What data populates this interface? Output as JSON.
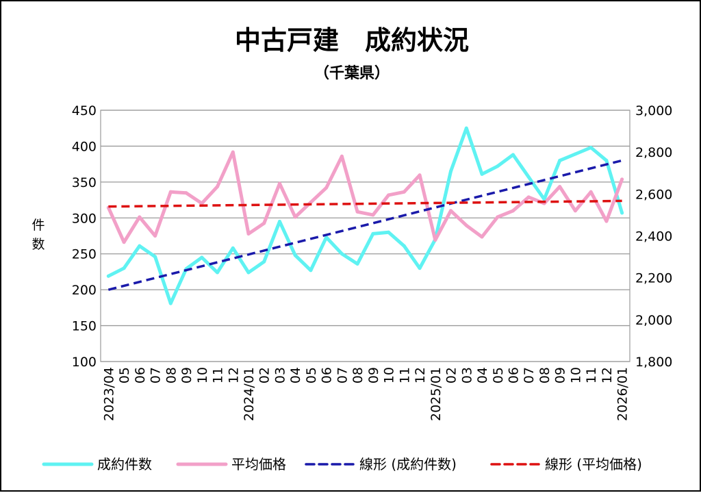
{
  "chart_data": {
    "type": "line",
    "title": "中古戸建　成約状況",
    "subtitle": "（千葉県）",
    "ylabel": "件数",
    "ylabel_chars": [
      "件",
      "数"
    ],
    "ylim": [
      100,
      450
    ],
    "y2lim": [
      1800,
      3000
    ],
    "yticks": [
      "100",
      "150",
      "200",
      "250",
      "300",
      "350",
      "400",
      "450"
    ],
    "y2ticks": [
      "1,800",
      "2,000",
      "2,200",
      "2,400",
      "2,600",
      "2,800",
      "3,000"
    ],
    "grid": true,
    "legend": "bottom",
    "x": [
      "2023/04",
      "05",
      "06",
      "07",
      "08",
      "09",
      "10",
      "11",
      "12",
      "2024/01",
      "02",
      "03",
      "04",
      "05",
      "06",
      "07",
      "08",
      "09",
      "10",
      "11",
      "12",
      "2025/01",
      "02",
      "03",
      "04",
      "05",
      "06",
      "07",
      "08",
      "09",
      "10",
      "11",
      "12",
      "2026/01"
    ],
    "series": [
      {
        "name": "成約件数",
        "axis": "left",
        "color": "#5ff2f2",
        "values": [
          219,
          230,
          261,
          246,
          181,
          229,
          245,
          224,
          258,
          224,
          239,
          295,
          248,
          227,
          273,
          250,
          236,
          278,
          280,
          261,
          230,
          270,
          365,
          425,
          361,
          372,
          388,
          357,
          326,
          380,
          389,
          398,
          380,
          307
        ]
      },
      {
        "name": "平均価格",
        "axis": "right",
        "color": "#f2a0c8",
        "values": [
          2535,
          2370,
          2490,
          2400,
          2610,
          2605,
          2555,
          2635,
          2800,
          2410,
          2460,
          2650,
          2490,
          2560,
          2630,
          2780,
          2515,
          2500,
          2595,
          2610,
          2690,
          2380,
          2520,
          2450,
          2395,
          2490,
          2520,
          2585,
          2555,
          2635,
          2520,
          2610,
          2470,
          2670
        ]
      }
    ],
    "trendlines": [
      {
        "name": "線形 (成約件数)",
        "axis": "left",
        "color": "#1a1aaa",
        "from": 200,
        "to": 380
      },
      {
        "name": "線形 (平均価格)",
        "axis": "right",
        "color": "#dd1111",
        "from": 2540,
        "to": 2567
      }
    ]
  }
}
